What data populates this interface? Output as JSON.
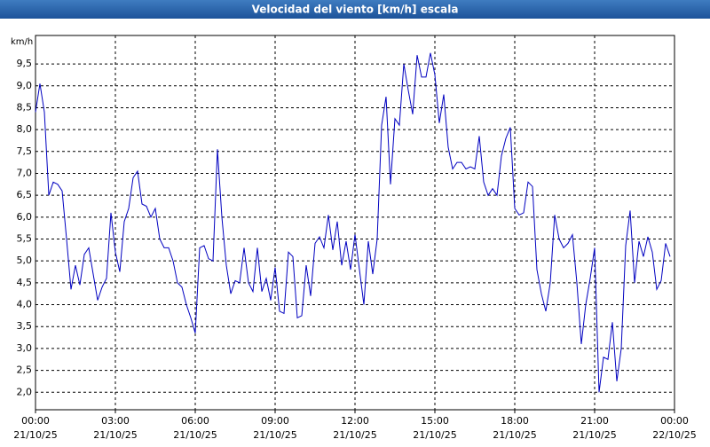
{
  "chart_data": {
    "type": "line",
    "title": "Velocidad del viento [km/h] escala",
    "y_label": "km/h",
    "x": [
      0,
      10,
      20,
      30,
      40,
      50,
      60,
      70,
      80,
      90,
      100,
      110,
      120,
      130,
      140,
      150,
      160,
      170,
      180,
      190,
      200,
      210,
      220,
      230,
      240,
      250,
      260,
      270,
      280,
      290,
      300,
      310,
      320,
      330,
      340,
      350,
      360,
      370,
      380,
      390,
      400,
      410,
      420,
      430,
      440,
      450,
      460,
      470,
      480,
      490,
      500,
      510,
      520,
      530,
      540,
      550,
      560,
      570,
      580,
      590,
      600,
      610,
      620,
      630,
      640,
      650,
      660,
      670,
      680,
      690,
      700,
      710,
      720,
      730,
      740,
      750,
      760,
      770,
      780,
      790,
      800,
      810,
      820,
      830,
      840,
      850,
      860,
      870,
      880,
      890,
      900,
      910,
      920,
      930,
      940,
      950,
      960,
      970,
      980,
      990,
      1000,
      1010,
      1020,
      1030,
      1040,
      1050,
      1060,
      1070,
      1080,
      1090,
      1100,
      1110,
      1120,
      1130,
      1140,
      1150,
      1160,
      1170,
      1180,
      1190,
      1200,
      1210,
      1220,
      1230,
      1240,
      1250,
      1260,
      1270,
      1280,
      1290,
      1300,
      1310,
      1320,
      1330,
      1340,
      1350,
      1360,
      1370,
      1380,
      1390,
      1400,
      1410,
      1420,
      1430
    ],
    "series": [
      {
        "color": "#0000c0",
        "values": [
          8.4,
          9.05,
          8.4,
          6.5,
          6.8,
          6.75,
          6.6,
          5.5,
          4.35,
          4.9,
          4.45,
          5.15,
          5.3,
          4.7,
          4.1,
          4.4,
          4.6,
          6.1,
          5.2,
          4.75,
          5.9,
          6.2,
          6.9,
          7.05,
          6.3,
          6.25,
          6.0,
          6.2,
          5.5,
          5.3,
          5.3,
          5.0,
          4.5,
          4.4,
          4.0,
          3.7,
          3.35,
          5.3,
          5.35,
          5.05,
          5.0,
          7.55,
          6.0,
          4.9,
          4.25,
          4.55,
          4.5,
          5.3,
          4.5,
          4.3,
          5.3,
          4.3,
          4.6,
          4.1,
          4.85,
          3.85,
          3.8,
          5.2,
          5.1,
          3.7,
          3.75,
          4.9,
          4.2,
          5.4,
          5.55,
          5.3,
          6.05,
          5.25,
          5.9,
          4.9,
          5.45,
          4.8,
          5.6,
          4.8,
          4.0,
          5.45,
          4.7,
          5.5,
          8.1,
          8.75,
          6.75,
          8.25,
          8.1,
          9.5,
          8.9,
          8.35,
          9.7,
          9.2,
          9.2,
          9.75,
          9.25,
          8.15,
          8.8,
          7.6,
          7.1,
          7.25,
          7.25,
          7.1,
          7.15,
          7.1,
          7.85,
          6.8,
          6.5,
          6.65,
          6.5,
          7.4,
          7.8,
          8.05,
          6.2,
          6.05,
          6.1,
          6.8,
          6.7,
          4.8,
          4.25,
          3.85,
          4.5,
          6.05,
          5.5,
          5.3,
          5.4,
          5.6,
          4.5,
          3.1,
          4.0,
          4.6,
          5.3,
          2.0,
          2.8,
          2.75,
          3.6,
          2.25,
          3.0,
          5.35,
          6.15,
          4.5,
          5.45,
          5.1,
          5.55,
          5.2,
          4.35,
          4.55,
          5.4,
          5.1
        ]
      }
    ],
    "xlim": [
      0,
      1440
    ],
    "xticks": [
      {
        "value": 0,
        "label": [
          "00:00",
          "21/10/25"
        ]
      },
      {
        "value": 180,
        "label": [
          "03:00",
          "21/10/25"
        ]
      },
      {
        "value": 360,
        "label": [
          "06:00",
          "21/10/25"
        ]
      },
      {
        "value": 540,
        "label": [
          "09:00",
          "21/10/25"
        ]
      },
      {
        "value": 720,
        "label": [
          "12:00",
          "21/10/25"
        ]
      },
      {
        "value": 900,
        "label": [
          "15:00",
          "21/10/25"
        ]
      },
      {
        "value": 1080,
        "label": [
          "18:00",
          "21/10/25"
        ]
      },
      {
        "value": 1260,
        "label": [
          "21:00",
          "21/10/25"
        ]
      },
      {
        "value": 1440,
        "label": [
          "00:00",
          "22/10/25"
        ]
      }
    ],
    "ylim": [
      1.6,
      10.15
    ],
    "yticks": [
      {
        "value": 2.0,
        "label": "2,0"
      },
      {
        "value": 2.5,
        "label": "2,5"
      },
      {
        "value": 3.0,
        "label": "3,0"
      },
      {
        "value": 3.5,
        "label": "3,5"
      },
      {
        "value": 4.0,
        "label": "4,0"
      },
      {
        "value": 4.5,
        "label": "4,5"
      },
      {
        "value": 5.0,
        "label": "5,0"
      },
      {
        "value": 5.5,
        "label": "5,5"
      },
      {
        "value": 6.0,
        "label": "6,0"
      },
      {
        "value": 6.5,
        "label": "6,5"
      },
      {
        "value": 7.0,
        "label": "7,0"
      },
      {
        "value": 7.5,
        "label": "7,5"
      },
      {
        "value": 8.0,
        "label": "8,0"
      },
      {
        "value": 8.5,
        "label": "8,5"
      },
      {
        "value": 9.0,
        "label": "9,0"
      },
      {
        "value": 9.5,
        "label": "9,5"
      }
    ],
    "grid": true
  }
}
